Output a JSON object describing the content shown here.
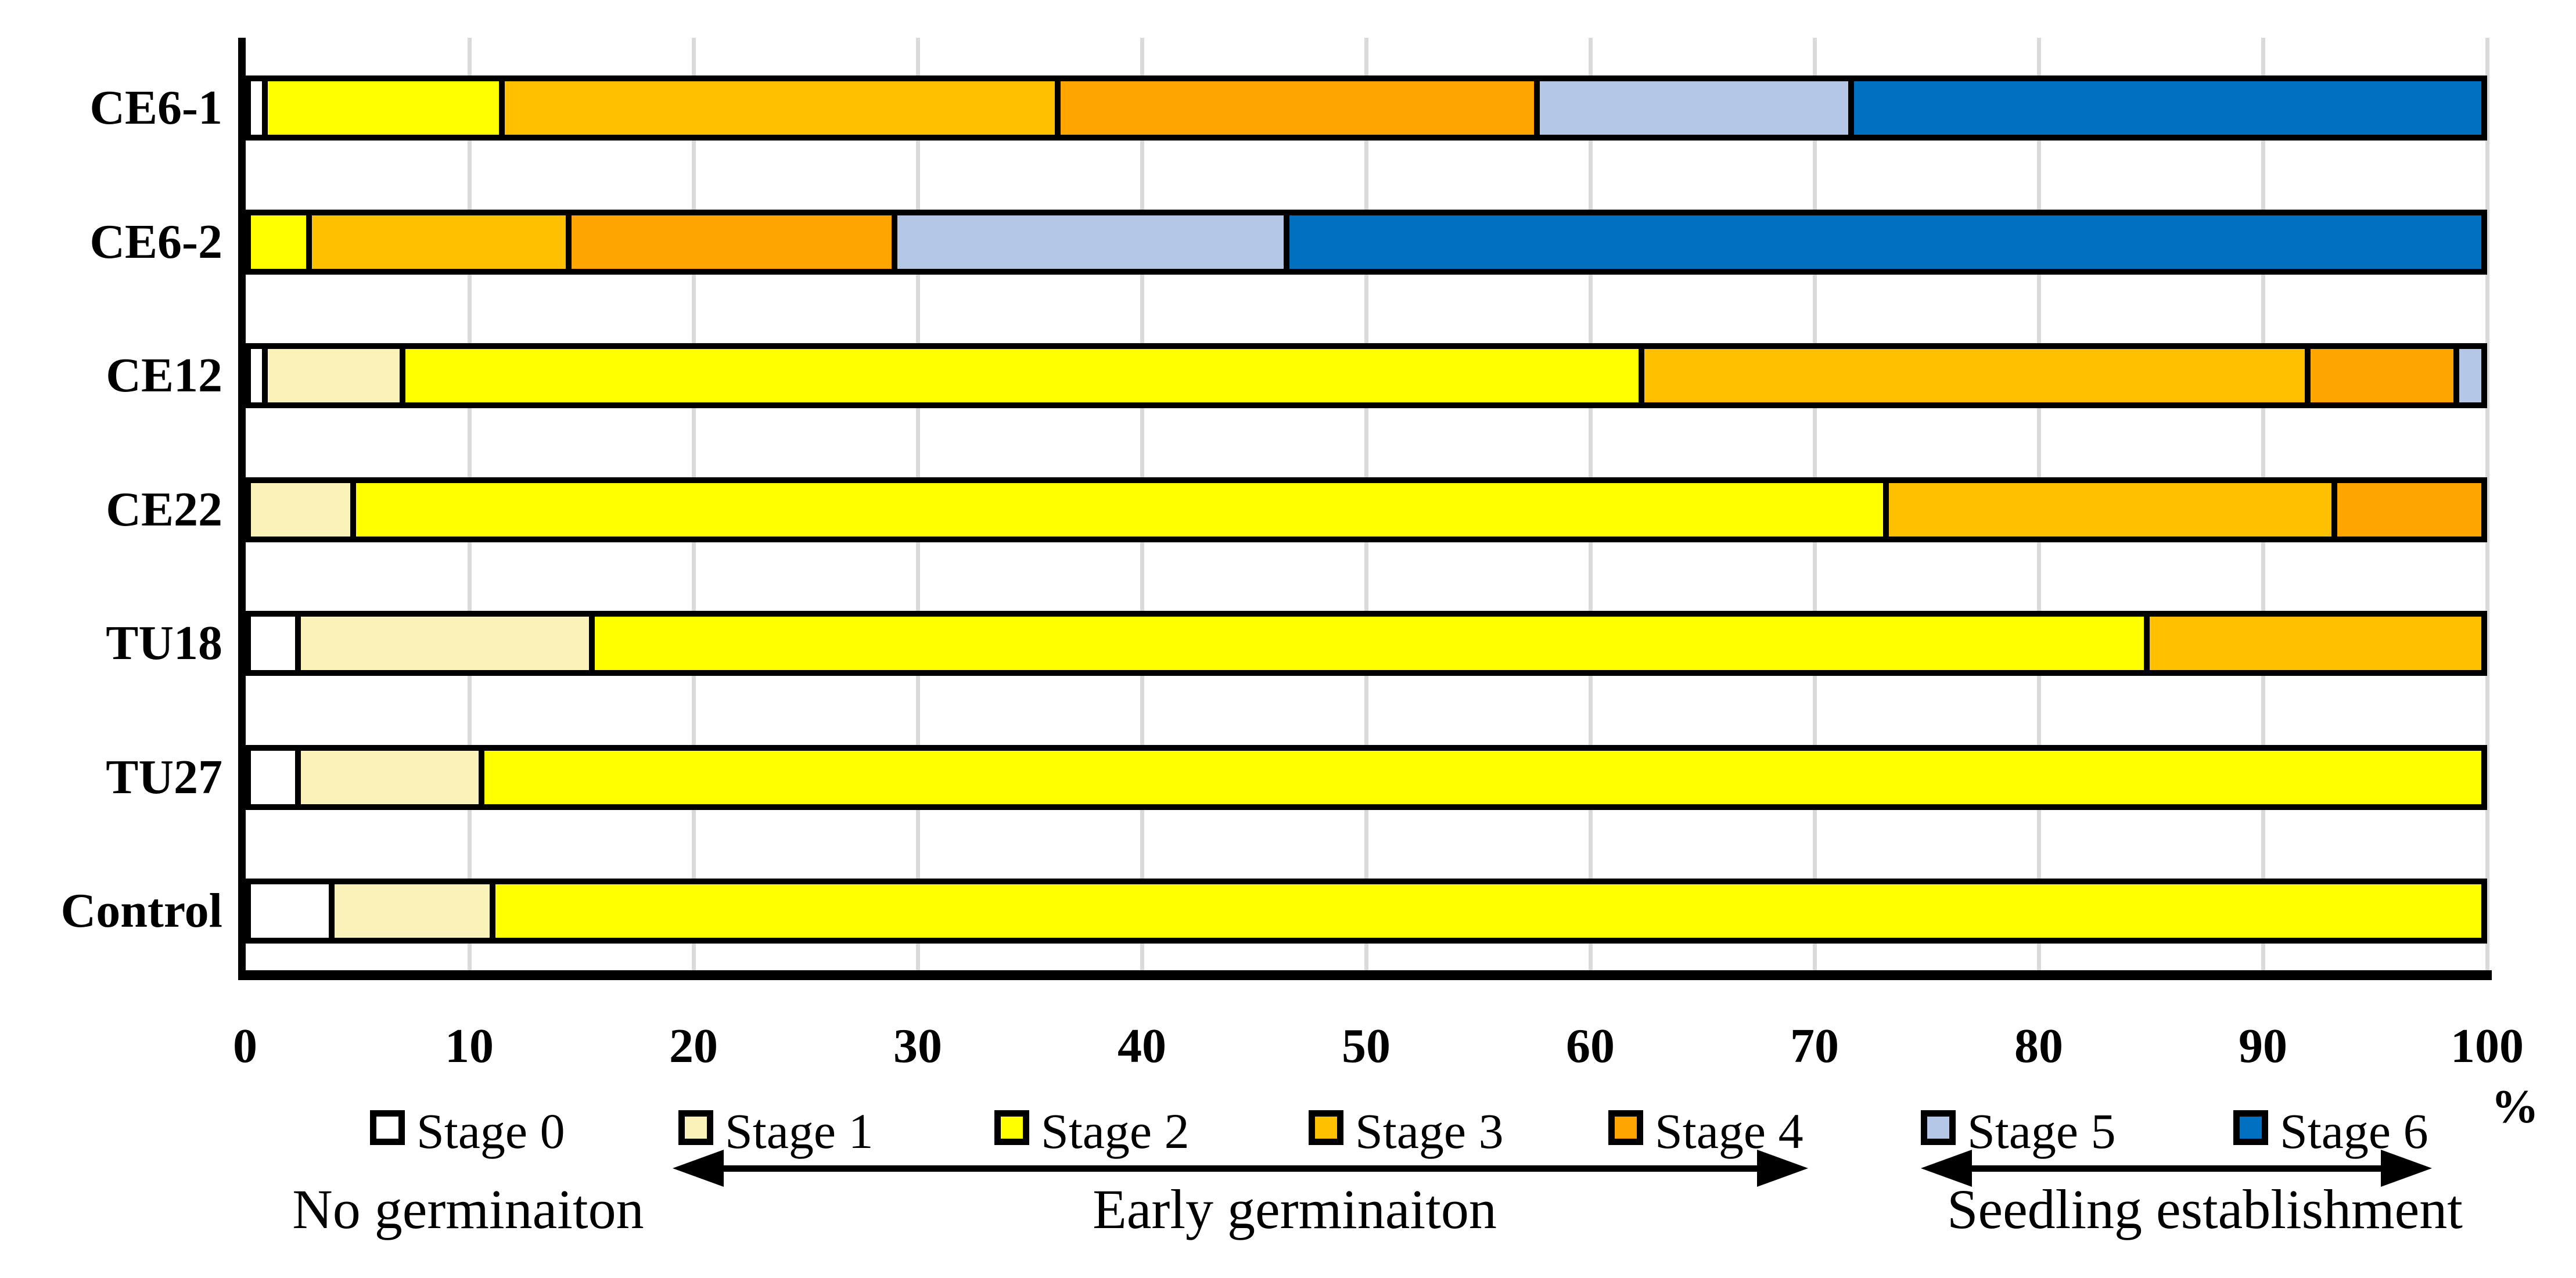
{
  "figure": {
    "background": "#FFFFFF",
    "grid_color": "#DADADA",
    "bar_border_color": "#000000",
    "percent_label": "%"
  },
  "chart_data": {
    "type": "bar",
    "orientation": "horizontal-stacked",
    "title": "",
    "xlabel": "%",
    "ylabel": "",
    "xlim": [
      0,
      100
    ],
    "x_ticks": [
      0,
      10,
      20,
      30,
      40,
      50,
      60,
      70,
      80,
      90,
      100
    ],
    "grid": "vertical-light-gray",
    "legend_position": "bottom",
    "categories": [
      "CE6-1",
      "CE6-2",
      "CE12",
      "CE22",
      "TU18",
      "TU27",
      "Control"
    ],
    "series": [
      {
        "name": "Stage 0",
        "color": "#FFFFFF",
        "values": [
          0.5,
          0,
          0.5,
          0,
          2,
          2,
          3.5
        ]
      },
      {
        "name": "Stage 1",
        "color": "#FAF2B8",
        "values": [
          0,
          0,
          6,
          4.5,
          13,
          8,
          7
        ]
      },
      {
        "name": "Stage 2",
        "color": "#FFFF00",
        "values": [
          10.5,
          2.5,
          56,
          69,
          70,
          90,
          89.5
        ]
      },
      {
        "name": "Stage 3",
        "color": "#FFC000",
        "values": [
          25,
          11.5,
          30,
          20,
          15,
          0,
          0
        ]
      },
      {
        "name": "Stage 4",
        "color": "#FFA500",
        "values": [
          21.5,
          14.5,
          6.5,
          6.5,
          0,
          0,
          0
        ]
      },
      {
        "name": "Stage 5",
        "color": "#B4C7E7",
        "values": [
          14,
          17.5,
          1,
          0,
          0,
          0,
          0
        ]
      },
      {
        "name": "Stage 6",
        "color": "#0070C0",
        "values": [
          28.5,
          54,
          0,
          0,
          0,
          0,
          0
        ]
      }
    ]
  },
  "annotations": {
    "no_germination": "No germinaiton",
    "early_germination": "Early germinaiton",
    "seedling_establishment": "Seedling establishment"
  }
}
